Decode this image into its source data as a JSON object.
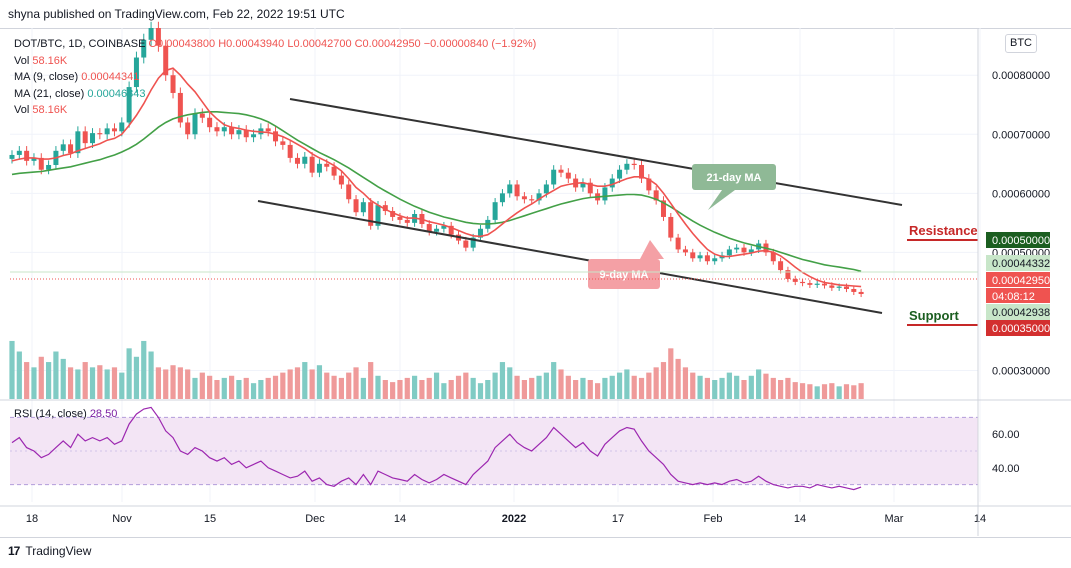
{
  "header": {
    "publisher": "shyna published on TradingView.com, Feb 22, 2022 19:51 UTC"
  },
  "legend": {
    "symbol": "DOT/BTC, 1D, COINBASE",
    "ohlc": "O0.00043800 H0.00043940 L0.00042700 C0.00042950 −0.00000840 (−1.92%)",
    "vol_label": "Vol",
    "vol_value": "58.16K",
    "ma9_label": "MA (9, close)",
    "ma9_value": "0.00044341",
    "ma21_label": "MA (21, close)",
    "ma21_value": "0.00046843",
    "vol2_label": "Vol",
    "vol2_value": "58.16K"
  },
  "rsi_legend": {
    "label": "RSI (14, close)",
    "value": "28.50"
  },
  "currency_badge": "BTC",
  "footer": {
    "brand": "TradingView"
  },
  "annotations": {
    "ma21": "21-day MA",
    "ma9": "9-day MA",
    "resistance": "Resistance",
    "support": "Support"
  },
  "colors": {
    "up": "#26a69a",
    "down": "#ef5350",
    "ma9": "#ef5350",
    "ma21": "#43a047",
    "channel": "#333333",
    "rsi": "#9c27b0",
    "rsi_band": "#f3e5f5"
  },
  "chart_data": {
    "type": "candlestick",
    "y_axis_ticks": [
      "0.00080000",
      "0.00070000",
      "0.00060000",
      "0.00050000",
      "0.00030000"
    ],
    "y_range": [
      0.00025,
      0.00088
    ],
    "x_axis_ticks": [
      "18",
      "Nov",
      "15",
      "Dec",
      "14",
      "2022",
      "17",
      "Feb",
      "14",
      "Mar",
      "14"
    ],
    "price_labels": [
      {
        "text": "0.00050000",
        "color": "#1b5e20"
      },
      {
        "text": "0.00044332",
        "color": "#c8e6c9"
      },
      {
        "text": "0.00042950",
        "color": "#ef5350"
      },
      {
        "text": "04:08:12",
        "color": "#ef5350"
      },
      {
        "text": "0.00042938",
        "color": "#c8e6c9"
      },
      {
        "text": "0.00035000",
        "color": "#d32f2f"
      }
    ],
    "rsi_ticks": [
      "60.00",
      "40.00"
    ],
    "rsi_range": [
      22,
      78
    ],
    "rsi_bands": [
      30,
      70
    ],
    "closes": [
      0.000665,
      0.000672,
      0.000655,
      0.00066,
      0.00064,
      0.000648,
      0.000672,
      0.000683,
      0.000668,
      0.000705,
      0.000685,
      0.000702,
      0.0007,
      0.00071,
      0.000705,
      0.00072,
      0.00078,
      0.00083,
      0.00086,
      0.00088,
      0.00085,
      0.0008,
      0.00077,
      0.00072,
      0.0007,
      0.000735,
      0.000728,
      0.000712,
      0.000705,
      0.000712,
      0.0007,
      0.000707,
      0.000695,
      0.0007,
      0.00071,
      0.000705,
      0.000688,
      0.000682,
      0.00066,
      0.00065,
      0.000662,
      0.000635,
      0.00065,
      0.000645,
      0.00063,
      0.000615,
      0.00059,
      0.000568,
      0.000585,
      0.000545,
      0.00058,
      0.00057,
      0.00056,
      0.000555,
      0.00055,
      0.000565,
      0.000548,
      0.000535,
      0.00054,
      0.000545,
      0.00053,
      0.00052,
      0.000508,
      0.000525,
      0.00054,
      0.000555,
      0.000585,
      0.0006,
      0.000615,
      0.000595,
      0.00059,
      0.000588,
      0.0006,
      0.000615,
      0.00064,
      0.000635,
      0.000625,
      0.00061,
      0.000618,
      0.0006,
      0.000588,
      0.00061,
      0.000625,
      0.00064,
      0.00065,
      0.000648,
      0.000625,
      0.000605,
      0.000588,
      0.00056,
      0.000525,
      0.000505,
      0.0005,
      0.00049,
      0.000495,
      0.000485,
      0.00049,
      0.000495,
      0.000505,
      0.000508,
      0.0005,
      0.000505,
      0.000515,
      0.0005,
      0.000485,
      0.00047,
      0.000455,
      0.00045,
      0.000448,
      0.000445,
      0.000447,
      0.000444,
      0.00044,
      0.000442,
      0.000438,
      0.000433,
      0.0004295
    ],
    "ma9": [
      0.000655,
      0.000658,
      0.00066,
      0.00066,
      0.000658,
      0.000658,
      0.00066,
      0.000664,
      0.000667,
      0.000672,
      0.000676,
      0.00068,
      0.000684,
      0.00069,
      0.000693,
      0.0007,
      0.000715,
      0.000732,
      0.000752,
      0.000775,
      0.000795,
      0.000808,
      0.000812,
      0.0008,
      0.000785,
      0.000772,
      0.000755,
      0.000738,
      0.000726,
      0.000716,
      0.000712,
      0.00071,
      0.000707,
      0.000705,
      0.000704,
      0.000703,
      0.0007,
      0.000696,
      0.00069,
      0.000683,
      0.000676,
      0.000667,
      0.00066,
      0.000654,
      0.000647,
      0.000638,
      0.000625,
      0.00061,
      0.0006,
      0.000588,
      0.00058,
      0.000573,
      0.000567,
      0.000562,
      0.000558,
      0.000558,
      0.000556,
      0.000552,
      0.000549,
      0.000546,
      0.000542,
      0.000537,
      0.000532,
      0.000528,
      0.000527,
      0.00053,
      0.000538,
      0.000548,
      0.000558,
      0.000567,
      0.000575,
      0.000582,
      0.00059,
      0.000598,
      0.000605,
      0.000612,
      0.000615,
      0.000617,
      0.000618,
      0.000615,
      0.000612,
      0.000612,
      0.000615,
      0.00062,
      0.000625,
      0.000628,
      0.000628,
      0.000624,
      0.000615,
      0.0006,
      0.000583,
      0.000565,
      0.000548,
      0.000532,
      0.000518,
      0.000505,
      0.000497,
      0.000493,
      0.000493,
      0.000495,
      0.000497,
      0.000499,
      0.000502,
      0.000503,
      0.0005,
      0.000494,
      0.000485,
      0.000475,
      0.000466,
      0.000459,
      0.000453,
      0.000449,
      0.000447,
      0.000445,
      0.000444,
      0.000443,
      0.000442
    ],
    "ma21": [
      0.000632,
      0.000634,
      0.000635,
      0.000636,
      0.000637,
      0.000639,
      0.000641,
      0.000643,
      0.000645,
      0.000648,
      0.000651,
      0.000654,
      0.000657,
      0.000661,
      0.000665,
      0.00067,
      0.000676,
      0.000683,
      0.000692,
      0.000702,
      0.000712,
      0.00072,
      0.000726,
      0.00073,
      0.000733,
      0.000735,
      0.000737,
      0.000738,
      0.000738,
      0.000737,
      0.000736,
      0.000735,
      0.000733,
      0.00073,
      0.000726,
      0.000721,
      0.000714,
      0.000706,
      0.000698,
      0.00069,
      0.000683,
      0.000676,
      0.000669,
      0.000663,
      0.000657,
      0.00065,
      0.000643,
      0.000635,
      0.000627,
      0.000619,
      0.000611,
      0.000604,
      0.000597,
      0.00059,
      0.000584,
      0.000578,
      0.000573,
      0.000568,
      0.000564,
      0.00056,
      0.000557,
      0.000554,
      0.000551,
      0.000549,
      0.000548,
      0.000548,
      0.000549,
      0.000551,
      0.000554,
      0.000558,
      0.000562,
      0.000566,
      0.00057,
      0.000574,
      0.000578,
      0.000582,
      0.000585,
      0.000588,
      0.000591,
      0.000593,
      0.000594,
      0.000595,
      0.000596,
      0.000597,
      0.000598,
      0.000598,
      0.000597,
      0.000594,
      0.00059,
      0.000584,
      0.000577,
      0.000569,
      0.000561,
      0.000553,
      0.000546,
      0.00054,
      0.000534,
      0.000529,
      0.000524,
      0.00052,
      0.000516,
      0.000513,
      0.00051,
      0.000507,
      0.000504,
      0.0005,
      0.000496,
      0.000492,
      0.000488,
      0.000485,
      0.000482,
      0.000479,
      0.000477,
      0.000475,
      0.000473,
      0.000471,
      0.000468
    ],
    "volume": [
      0.55,
      0.45,
      0.35,
      0.3,
      0.4,
      0.35,
      0.45,
      0.38,
      0.3,
      0.28,
      0.35,
      0.3,
      0.32,
      0.28,
      0.3,
      0.25,
      0.48,
      0.4,
      0.55,
      0.45,
      0.3,
      0.28,
      0.32,
      0.3,
      0.28,
      0.2,
      0.25,
      0.22,
      0.18,
      0.2,
      0.22,
      0.18,
      0.2,
      0.15,
      0.18,
      0.2,
      0.22,
      0.25,
      0.28,
      0.3,
      0.35,
      0.28,
      0.32,
      0.25,
      0.22,
      0.2,
      0.25,
      0.3,
      0.2,
      0.35,
      0.22,
      0.18,
      0.16,
      0.18,
      0.2,
      0.22,
      0.18,
      0.2,
      0.25,
      0.15,
      0.18,
      0.22,
      0.25,
      0.2,
      0.15,
      0.18,
      0.25,
      0.35,
      0.3,
      0.22,
      0.18,
      0.2,
      0.22,
      0.25,
      0.35,
      0.28,
      0.22,
      0.18,
      0.2,
      0.18,
      0.15,
      0.2,
      0.22,
      0.25,
      0.28,
      0.22,
      0.2,
      0.25,
      0.3,
      0.35,
      0.48,
      0.38,
      0.3,
      0.25,
      0.22,
      0.2,
      0.18,
      0.2,
      0.25,
      0.22,
      0.18,
      0.22,
      0.28,
      0.24,
      0.2,
      0.18,
      0.2,
      0.16,
      0.15,
      0.14,
      0.12,
      0.14,
      0.15,
      0.12,
      0.14,
      0.13,
      0.15
    ],
    "rsi": [
      55,
      58,
      52,
      50,
      46,
      48,
      52,
      56,
      52,
      60,
      56,
      58,
      56,
      58,
      54,
      56,
      66,
      72,
      75,
      76,
      70,
      62,
      58,
      50,
      48,
      52,
      50,
      46,
      44,
      46,
      42,
      44,
      40,
      42,
      44,
      40,
      38,
      36,
      34,
      35,
      38,
      32,
      34,
      30,
      29,
      32,
      34,
      30,
      36,
      30,
      38,
      36,
      34,
      33,
      32,
      36,
      33,
      31,
      33,
      36,
      34,
      32,
      30,
      36,
      40,
      44,
      52,
      56,
      60,
      55,
      52,
      50,
      54,
      58,
      64,
      60,
      56,
      52,
      55,
      50,
      47,
      54,
      58,
      62,
      64,
      63,
      56,
      50,
      46,
      42,
      36,
      32,
      31,
      30,
      31,
      30,
      31,
      30,
      32,
      33,
      31,
      32,
      35,
      32,
      30,
      29,
      28,
      29,
      29,
      28,
      30,
      29,
      28,
      29,
      28,
      27,
      28.5
    ]
  }
}
